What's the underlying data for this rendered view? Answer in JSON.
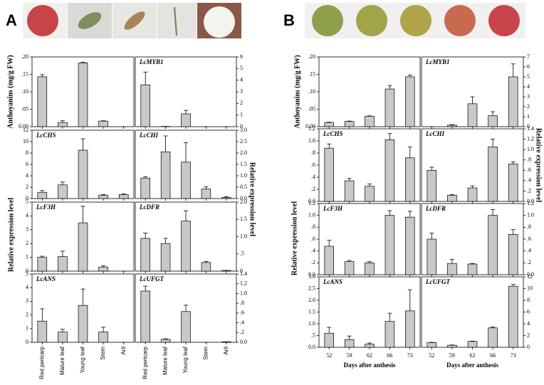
{
  "panels": [
    {
      "label": "A",
      "ylabel_left": "Relative expression level",
      "ylabel_right": "Relative expression level"
    },
    {
      "label": "B",
      "ylabel_left": "Relative expression level",
      "ylabel_right": "Relative expression level"
    }
  ],
  "chart_data": [
    {
      "type": "bar",
      "ylabel": "Anthoyanins (mg/g FW)",
      "values": [
        0.143,
        0.012,
        0.183,
        0.016,
        0
      ],
      "errors": [
        0.006,
        0.005,
        0.002,
        0.001,
        0
      ],
      "ylim": [
        0,
        0.2
      ],
      "yticks": [
        {
          "value": 0,
          "label": "0.00"
        },
        {
          "value": 0.05,
          "label": ".05"
        },
        {
          "value": 0.1,
          "label": ".10"
        },
        {
          "value": 0.15,
          "label": ".15"
        },
        {
          "value": 0.2,
          "label": ".20"
        }
      ],
      "color": "#c8c8c8"
    },
    {
      "type": "bar",
      "title": "LcMYB1",
      "values": [
        3.6,
        0.02,
        1.1,
        0,
        0
      ],
      "errors": [
        1.1,
        0,
        0.3,
        0,
        0
      ],
      "ylim": [
        0,
        6
      ],
      "yticks": [
        0,
        1,
        2,
        3,
        4,
        5,
        6
      ],
      "color": "#c8c8c8"
    },
    {
      "type": "bar",
      "title": "LcCHS",
      "values": [
        1.1,
        2.4,
        8.5,
        0.6,
        0.7
      ],
      "errors": [
        0.3,
        0.5,
        2.0,
        0.1,
        0.1
      ],
      "ylim": [
        0,
        12
      ],
      "yticks": [
        0,
        2,
        4,
        6,
        8,
        10,
        12
      ],
      "color": "#c8c8c8"
    },
    {
      "type": "bar",
      "title": "LcCHI",
      "values": [
        0.9,
        2.05,
        1.6,
        0.42,
        0.05
      ],
      "errors": [
        0.06,
        0.7,
        0.85,
        0.1,
        0.03
      ],
      "ylim": [
        0,
        3
      ],
      "yticks": [
        {
          "value": 0,
          "label": "0.0"
        },
        0.5,
        {
          "value": 1,
          "label": "1.0"
        },
        1.5,
        {
          "value": 2,
          "label": "2.0"
        },
        2.5,
        {
          "value": 3,
          "label": "3.0"
        }
      ],
      "color": "#c8c8c8"
    },
    {
      "type": "bar",
      "title": "LcF3H",
      "values": [
        1.0,
        1.05,
        3.5,
        0.3,
        0
      ],
      "errors": [
        0.08,
        0.4,
        1.2,
        0.08,
        0
      ],
      "ylim": [
        0,
        5
      ],
      "yticks": [
        0,
        1,
        2,
        3,
        4,
        5
      ],
      "color": "#c8c8c8"
    },
    {
      "type": "bar",
      "title": "LcDFR",
      "values": [
        0.95,
        0.8,
        1.45,
        0.25,
        0.02
      ],
      "errors": [
        0.15,
        0.15,
        0.3,
        0.03,
        0
      ],
      "ylim": [
        0,
        2
      ],
      "yticks": [
        0,
        {
          "value": 0.5,
          "label": ".5"
        },
        {
          "value": 1,
          "label": "1.0"
        },
        1.5,
        {
          "value": 2,
          "label": "2.0"
        }
      ],
      "color": "#c8c8c8"
    },
    {
      "type": "bar",
      "title": "LcANS",
      "categories": [
        "Red pericarp",
        "Mature leaf",
        "Young leaf",
        "Stem",
        "Aril"
      ],
      "values": [
        1.55,
        0.75,
        2.7,
        0.75,
        0
      ],
      "errors": [
        0.9,
        0.2,
        1.2,
        0.35,
        0
      ],
      "ylim": [
        0,
        5
      ],
      "yticks": [
        0,
        1,
        2,
        3,
        4,
        5
      ],
      "color": "#c8c8c8"
    },
    {
      "type": "bar",
      "title": "LcUFGT",
      "categories": [
        "Red pericarp",
        "Mature leaf",
        "Young leaf",
        "Stem",
        "Aril"
      ],
      "values": [
        1.05,
        0.06,
        0.63,
        0,
        0.01
      ],
      "errors": [
        0.1,
        0.01,
        0.13,
        0,
        0
      ],
      "ylim": [
        0,
        1.4
      ],
      "yticks": [
        {
          "value": 0,
          "label": "0.0"
        },
        {
          "value": 0.2,
          "label": ".2"
        },
        {
          "value": 0.4,
          "label": ".4"
        },
        {
          "value": 0.6,
          "label": ".6"
        },
        {
          "value": 0.8,
          "label": ".8"
        },
        {
          "value": 1,
          "label": "1.0"
        },
        1.2,
        1.4
      ],
      "color": "#c8c8c8"
    },
    {
      "type": "bar",
      "ylabel": "Anthoyanins (mg/g FW)",
      "values": [
        0.012,
        0.015,
        0.03,
        0.108,
        0.143
      ],
      "errors": [
        0.001,
        0.001,
        0.001,
        0.01,
        0.005
      ],
      "ylim": [
        0,
        0.2
      ],
      "yticks": [
        {
          "value": 0,
          "label": "0.00"
        },
        {
          "value": 0.05,
          "label": ".05"
        },
        {
          "value": 0.1,
          "label": ".10"
        },
        {
          "value": 0.15,
          "label": ".15"
        },
        {
          "value": 0.2,
          "label": ".20"
        }
      ],
      "color": "#c8c8c8"
    },
    {
      "type": "bar",
      "title": "LcMYB1",
      "values": [
        0,
        0.15,
        2.3,
        1.1,
        5.0
      ],
      "errors": [
        0,
        0.05,
        0.7,
        0.4,
        1.3
      ],
      "ylim": [
        0,
        7
      ],
      "yticks": [
        0,
        1,
        2,
        3,
        4,
        5,
        6,
        7
      ],
      "color": "#c8c8c8"
    },
    {
      "type": "bar",
      "title": "LcCHS",
      "values": [
        0.88,
        0.34,
        0.25,
        1.02,
        0.72
      ],
      "errors": [
        0.07,
        0.04,
        0.04,
        0.1,
        0.18
      ],
      "ylim": [
        0,
        1.2
      ],
      "yticks": [
        {
          "value": 0,
          "label": "0.0"
        },
        {
          "value": 0.2,
          "label": ".2"
        },
        {
          "value": 0.4,
          "label": ".4"
        },
        {
          "value": 0.6,
          "label": ".6"
        },
        {
          "value": 0.8,
          "label": ".8"
        },
        {
          "value": 1,
          "label": "1.0"
        },
        1.2
      ],
      "color": "#c8c8c8"
    },
    {
      "type": "bar",
      "title": "LcCHI",
      "values": [
        0.6,
        0.12,
        0.26,
        1.05,
        0.72
      ],
      "errors": [
        0.06,
        0.01,
        0.04,
        0.15,
        0.04
      ],
      "ylim": [
        0,
        1.4
      ],
      "yticks": [
        {
          "value": 0,
          "label": "0.0"
        },
        {
          "value": 0.2,
          "label": ".2"
        },
        {
          "value": 0.4,
          "label": ".4"
        },
        {
          "value": 0.6,
          "label": ".6"
        },
        {
          "value": 0.8,
          "label": ".8"
        },
        {
          "value": 1,
          "label": "1.0"
        },
        1.2,
        1.4
      ],
      "color": "#c8c8c8"
    },
    {
      "type": "bar",
      "title": "LcF3H",
      "values": [
        0.48,
        0.22,
        0.2,
        1.0,
        0.97
      ],
      "errors": [
        0.1,
        0.02,
        0.02,
        0.08,
        0.1
      ],
      "ylim": [
        0,
        1.2
      ],
      "yticks": [
        {
          "value": 0,
          "label": "0.0"
        },
        {
          "value": 0.2,
          "label": ".2"
        },
        {
          "value": 0.4,
          "label": ".4"
        },
        {
          "value": 0.6,
          "label": ".6"
        },
        {
          "value": 0.8,
          "label": ".8"
        },
        {
          "value": 1,
          "label": "1.0"
        },
        1.2
      ],
      "color": "#c8c8c8"
    },
    {
      "type": "bar",
      "title": "LcDFR",
      "values": [
        0.6,
        0.19,
        0.18,
        1.0,
        0.68
      ],
      "errors": [
        0.1,
        0.07,
        0.01,
        0.1,
        0.08
      ],
      "ylim": [
        0,
        1.2
      ],
      "yticks": [
        {
          "value": 0,
          "label": "0.0"
        },
        {
          "value": 0.2,
          "label": ".2"
        },
        {
          "value": 0.4,
          "label": ".4"
        },
        {
          "value": 0.6,
          "label": ".6"
        },
        {
          "value": 0.8,
          "label": ".8"
        },
        {
          "value": 1,
          "label": "1.0"
        },
        1.2
      ],
      "color": "#c8c8c8"
    },
    {
      "type": "bar",
      "title": "LcANS",
      "categories": [
        "52",
        "59",
        "62",
        "66",
        "73"
      ],
      "xlabel": "Days after anthesis",
      "values": [
        0.6,
        0.33,
        0.13,
        1.1,
        1.55
      ],
      "errors": [
        0.25,
        0.15,
        0.05,
        0.35,
        0.9
      ],
      "ylim": [
        0,
        3
      ],
      "yticks": [
        {
          "value": 0,
          "label": "0.0"
        },
        {
          "value": 0.5,
          "label": ".5"
        },
        {
          "value": 1,
          "label": "1.0"
        },
        1.5,
        {
          "value": 2,
          "label": "2.0"
        },
        2.5,
        {
          "value": 3,
          "label": "3.0"
        }
      ],
      "color": "#c8c8c8"
    },
    {
      "type": "bar",
      "title": "LcUFGT",
      "categories": [
        "52",
        "59",
        "62",
        "66",
        "73"
      ],
      "xlabel": "Days after anthesis",
      "values": [
        0.8,
        0.35,
        1.0,
        3.3,
        10.4
      ],
      "errors": [
        0.05,
        0.05,
        0.05,
        0.15,
        0.3
      ],
      "ylim": [
        0,
        12
      ],
      "yticks": [
        0,
        2,
        4,
        6,
        8,
        10,
        12
      ],
      "color": "#c8c8c8"
    }
  ]
}
